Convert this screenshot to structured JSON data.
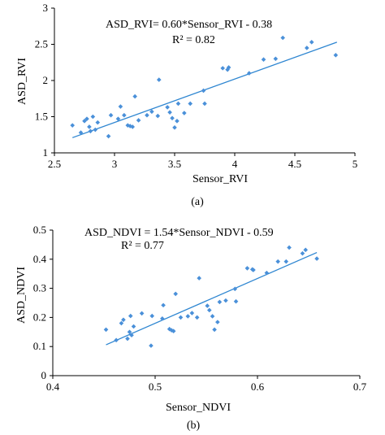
{
  "colors": {
    "marker": "#4a90d9",
    "trendline": "#2e86d1",
    "axis": "#000000"
  },
  "chart_data": [
    {
      "type": "scatter",
      "panel_label": "(a)",
      "xlabel": "Sensor_RVI",
      "ylabel": "ASD_RVI",
      "xlim": [
        2.5,
        5
      ],
      "ylim": [
        1,
        3
      ],
      "x_ticks": [
        "2.5",
        "3",
        "3.5",
        "4",
        "4.5",
        "5"
      ],
      "y_ticks": [
        "1",
        "1.5",
        "2",
        "2.5",
        "3"
      ],
      "x_tick_values": [
        2.5,
        3,
        3.5,
        4,
        4.5,
        5
      ],
      "y_tick_values": [
        1,
        1.5,
        2,
        2.5,
        3
      ],
      "equation": "ASD_RVI= 0.60*Sensor_RVI - 0.38",
      "r_squared": "R² = 0.82",
      "grid": false,
      "trendline": {
        "x": [
          2.65,
          4.85
        ],
        "y": [
          1.21,
          2.53
        ]
      },
      "points": [
        [
          2.65,
          1.38
        ],
        [
          2.72,
          1.28
        ],
        [
          2.75,
          1.44
        ],
        [
          2.77,
          1.47
        ],
        [
          2.79,
          1.36
        ],
        [
          2.8,
          1.3
        ],
        [
          2.82,
          1.5
        ],
        [
          2.84,
          1.32
        ],
        [
          2.86,
          1.42
        ],
        [
          2.95,
          1.23
        ],
        [
          2.97,
          1.52
        ],
        [
          3.03,
          1.47
        ],
        [
          3.05,
          1.64
        ],
        [
          3.08,
          1.52
        ],
        [
          3.11,
          1.38
        ],
        [
          3.13,
          1.37
        ],
        [
          3.15,
          1.36
        ],
        [
          3.17,
          1.78
        ],
        [
          3.2,
          1.45
        ],
        [
          3.27,
          1.52
        ],
        [
          3.31,
          1.57
        ],
        [
          3.36,
          1.51
        ],
        [
          3.37,
          2.01
        ],
        [
          3.44,
          1.63
        ],
        [
          3.46,
          1.56
        ],
        [
          3.48,
          1.48
        ],
        [
          3.5,
          1.35
        ],
        [
          3.52,
          1.44
        ],
        [
          3.53,
          1.68
        ],
        [
          3.58,
          1.55
        ],
        [
          3.63,
          1.68
        ],
        [
          3.74,
          1.86
        ],
        [
          3.75,
          1.68
        ],
        [
          3.9,
          2.17
        ],
        [
          3.94,
          2.15
        ],
        [
          3.95,
          2.18
        ],
        [
          4.12,
          2.1
        ],
        [
          4.24,
          2.29
        ],
        [
          4.34,
          2.3
        ],
        [
          4.4,
          2.59
        ],
        [
          4.6,
          2.45
        ],
        [
          4.64,
          2.53
        ],
        [
          4.84,
          2.35
        ]
      ]
    },
    {
      "type": "scatter",
      "panel_label": "(b)",
      "xlabel": "Sensor_NDVI",
      "ylabel": "ASD_NDVI",
      "xlim": [
        0.4,
        0.7
      ],
      "ylim": [
        0,
        0.5
      ],
      "x_ticks": [
        "0.4",
        "0.5",
        "0.6",
        "0.7"
      ],
      "y_ticks": [
        "0",
        "0.1",
        "0.2",
        "0.3",
        "0.4",
        "0.5"
      ],
      "x_tick_values": [
        0.4,
        0.5,
        0.6,
        0.7
      ],
      "y_tick_values": [
        0,
        0.1,
        0.2,
        0.3,
        0.4,
        0.5
      ],
      "equation": "ASD_NDVI = 1.54*Sensor_NDVI - 0.59",
      "r_squared": "R² = 0.77",
      "grid": false,
      "trendline": {
        "x": [
          0.452,
          0.658
        ],
        "y": [
          0.106,
          0.423
        ]
      },
      "points": [
        [
          0.452,
          0.158
        ],
        [
          0.462,
          0.122
        ],
        [
          0.467,
          0.18
        ],
        [
          0.469,
          0.192
        ],
        [
          0.473,
          0.127
        ],
        [
          0.475,
          0.15
        ],
        [
          0.476,
          0.205
        ],
        [
          0.477,
          0.139
        ],
        [
          0.479,
          0.169
        ],
        [
          0.487,
          0.214
        ],
        [
          0.496,
          0.103
        ],
        [
          0.497,
          0.205
        ],
        [
          0.507,
          0.196
        ],
        [
          0.508,
          0.242
        ],
        [
          0.514,
          0.16
        ],
        [
          0.516,
          0.156
        ],
        [
          0.518,
          0.153
        ],
        [
          0.52,
          0.281
        ],
        [
          0.525,
          0.2
        ],
        [
          0.532,
          0.204
        ],
        [
          0.536,
          0.215
        ],
        [
          0.541,
          0.2
        ],
        [
          0.543,
          0.335
        ],
        [
          0.551,
          0.24
        ],
        [
          0.553,
          0.225
        ],
        [
          0.556,
          0.204
        ],
        [
          0.558,
          0.158
        ],
        [
          0.561,
          0.184
        ],
        [
          0.563,
          0.253
        ],
        [
          0.569,
          0.258
        ],
        [
          0.578,
          0.298
        ],
        [
          0.579,
          0.255
        ],
        [
          0.59,
          0.369
        ],
        [
          0.595,
          0.365
        ],
        [
          0.596,
          0.363
        ],
        [
          0.609,
          0.353
        ],
        [
          0.62,
          0.392
        ],
        [
          0.628,
          0.392
        ],
        [
          0.631,
          0.44
        ],
        [
          0.644,
          0.42
        ],
        [
          0.647,
          0.432
        ],
        [
          0.658,
          0.402
        ]
      ]
    }
  ]
}
